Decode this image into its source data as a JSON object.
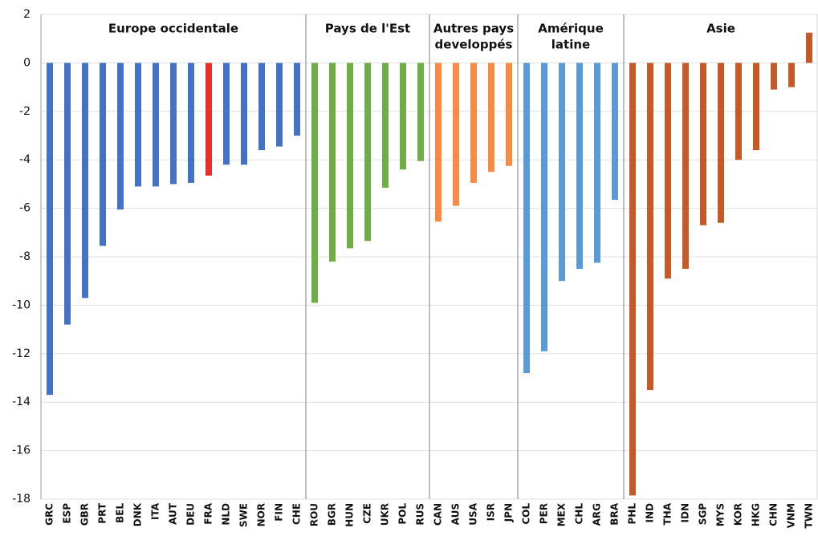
{
  "chart_data": {
    "type": "bar",
    "ylim": [
      -18,
      2
    ],
    "yticks": [
      2,
      0,
      -2,
      -4,
      -6,
      -8,
      -10,
      -12,
      -14,
      -16,
      -18
    ],
    "grid": true,
    "groups": [
      {
        "name_lines": [
          "Europe occidentale"
        ],
        "color": "#4472c4",
        "categories": [
          "GRC",
          "ESP",
          "GBR",
          "PRT",
          "BEL",
          "DNK",
          "ITA",
          "AUT",
          "DEU",
          "FRA",
          "NLD",
          "SWE",
          "NOR",
          "FIN",
          "CHE"
        ],
        "values": [
          -13.7,
          -10.8,
          -9.7,
          -7.55,
          -6.05,
          -5.1,
          -5.1,
          -5.0,
          -4.95,
          -4.65,
          -4.2,
          -4.2,
          -3.6,
          -3.45,
          -3.0
        ],
        "colors": [
          "#4472c4",
          "#4472c4",
          "#4472c4",
          "#4472c4",
          "#4472c4",
          "#4472c4",
          "#4472c4",
          "#4472c4",
          "#4472c4",
          "#e8302a",
          "#4472c4",
          "#4472c4",
          "#4472c4",
          "#4472c4",
          "#4472c4"
        ]
      },
      {
        "name_lines": [
          "Pays de l'Est"
        ],
        "color": "#70ad47",
        "categories": [
          "ROU",
          "BGR",
          "HUN",
          "CZE",
          "UKR",
          "POL",
          "RUS"
        ],
        "values": [
          -9.9,
          -8.2,
          -7.65,
          -7.35,
          -5.15,
          -4.4,
          -4.05
        ]
      },
      {
        "name_lines": [
          "Autres pays",
          "developpés"
        ],
        "color": "#f68b45",
        "categories": [
          "CAN",
          "AUS",
          "USA",
          "ISR",
          "JPN"
        ],
        "values": [
          -6.55,
          -5.9,
          -4.95,
          -4.5,
          -4.25
        ]
      },
      {
        "name_lines": [
          "Amérique",
          "latine"
        ],
        "color": "#5b9bd5",
        "categories": [
          "COL",
          "PER",
          "MEX",
          "CHL",
          "ARG",
          "BRA"
        ],
        "values": [
          -12.8,
          -11.9,
          -9.0,
          -8.5,
          -8.25,
          -5.65
        ]
      },
      {
        "name_lines": [
          "Asie"
        ],
        "color": "#c55a28",
        "categories": [
          "PHL",
          "IND",
          "THA",
          "IDN",
          "SGP",
          "MYS",
          "KOR",
          "HKG",
          "CHN",
          "VNM",
          "TWN"
        ],
        "values": [
          -17.85,
          -13.5,
          -8.9,
          -8.5,
          -6.7,
          -6.6,
          -4.0,
          -3.6,
          -1.1,
          -1.0,
          1.25
        ]
      }
    ]
  }
}
